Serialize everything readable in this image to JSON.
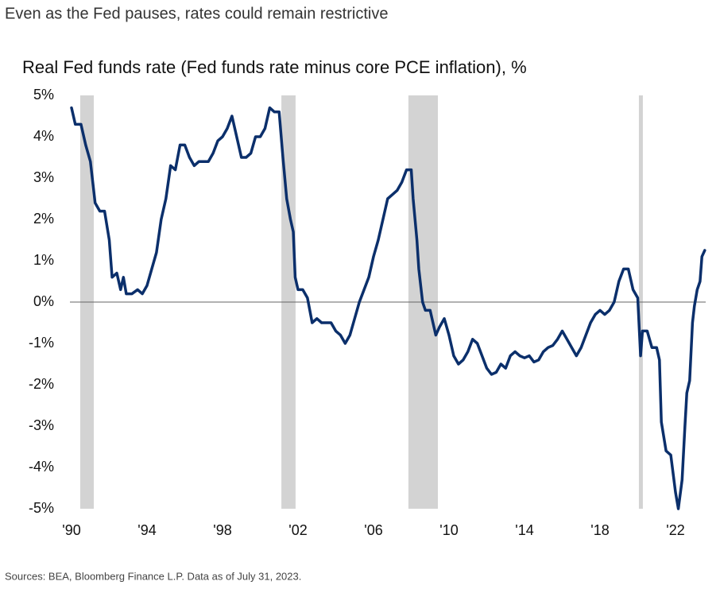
{
  "chart_data": {
    "type": "line",
    "title": "Even as the Fed pauses, rates could remain restrictive",
    "subtitle": "Real Fed funds rate (Fed funds rate minus core PCE inflation), %",
    "source": "Sources: BEA, Bloomberg Finance L.P. Data as of July 31, 2023.",
    "color": "#0b2f6b",
    "recession_color": "#d3d3d3",
    "recessions": [
      [
        1990.46,
        1991.18
      ],
      [
        2001.12,
        2001.87
      ],
      [
        2007.85,
        2009.41
      ],
      [
        2020.06,
        2020.27
      ]
    ],
    "xlim": [
      1990,
      2023.6
    ],
    "ylim": [
      -5,
      5
    ],
    "xticks": [
      {
        "value": 1990,
        "label": "'90"
      },
      {
        "value": 1994,
        "label": "'94"
      },
      {
        "value": 1998,
        "label": "'98"
      },
      {
        "value": 2002,
        "label": "'02"
      },
      {
        "value": 2006,
        "label": "'06"
      },
      {
        "value": 2010,
        "label": "'10"
      },
      {
        "value": 2014,
        "label": "'14"
      },
      {
        "value": 2018,
        "label": "'18"
      },
      {
        "value": 2022,
        "label": "'22"
      }
    ],
    "yticks": [
      {
        "value": 5,
        "label": "5%"
      },
      {
        "value": 4,
        "label": "4%"
      },
      {
        "value": 3,
        "label": "3%"
      },
      {
        "value": 2,
        "label": "2%"
      },
      {
        "value": 1,
        "label": "1%"
      },
      {
        "value": 0,
        "label": "0%"
      },
      {
        "value": -1,
        "label": "-1%"
      },
      {
        "value": -2,
        "label": "-2%"
      },
      {
        "value": -3,
        "label": "-3%"
      },
      {
        "value": -4,
        "label": "-4%"
      },
      {
        "value": -5,
        "label": "-5%"
      }
    ],
    "grid": false,
    "x": [
      1990.0,
      1990.2,
      1990.5,
      1990.75,
      1991.0,
      1991.25,
      1991.5,
      1991.75,
      1992.0,
      1992.15,
      1992.4,
      1992.6,
      1992.75,
      1992.9,
      1993.2,
      1993.5,
      1993.75,
      1994.0,
      1994.25,
      1994.5,
      1994.75,
      1995.0,
      1995.25,
      1995.5,
      1995.75,
      1996.0,
      1996.25,
      1996.5,
      1996.75,
      1997.0,
      1997.25,
      1997.5,
      1997.75,
      1998.0,
      1998.25,
      1998.5,
      1998.75,
      1999.0,
      1999.25,
      1999.5,
      1999.75,
      2000.0,
      2000.25,
      2000.5,
      2000.75,
      2001.0,
      2001.2,
      2001.4,
      2001.6,
      2001.75,
      2001.85,
      2002.0,
      2002.25,
      2002.5,
      2002.75,
      2003.0,
      2003.25,
      2003.5,
      2003.75,
      2004.0,
      2004.25,
      2004.5,
      2004.75,
      2005.0,
      2005.25,
      2005.5,
      2005.75,
      2006.0,
      2006.25,
      2006.5,
      2006.75,
      2007.0,
      2007.25,
      2007.5,
      2007.75,
      2008.0,
      2008.1,
      2008.3,
      2008.4,
      2008.6,
      2008.75,
      2009.0,
      2009.15,
      2009.3,
      2009.5,
      2009.75,
      2010.0,
      2010.25,
      2010.5,
      2010.75,
      2011.0,
      2011.25,
      2011.5,
      2011.75,
      2012.0,
      2012.25,
      2012.5,
      2012.75,
      2013.0,
      2013.25,
      2013.5,
      2013.75,
      2014.0,
      2014.25,
      2014.5,
      2014.75,
      2015.0,
      2015.25,
      2015.5,
      2015.75,
      2016.0,
      2016.25,
      2016.5,
      2016.75,
      2017.0,
      2017.25,
      2017.5,
      2017.75,
      2018.0,
      2018.25,
      2018.5,
      2018.75,
      2019.0,
      2019.25,
      2019.5,
      2019.75,
      2020.0,
      2020.15,
      2020.25,
      2020.5,
      2020.75,
      2021.0,
      2021.15,
      2021.25,
      2021.5,
      2021.75,
      2022.0,
      2022.15,
      2022.35,
      2022.5,
      2022.6,
      2022.75,
      2022.9,
      2023.0,
      2023.15,
      2023.3,
      2023.4,
      2023.55
    ],
    "values": [
      4.7,
      4.3,
      4.3,
      3.8,
      3.4,
      2.4,
      2.2,
      2.2,
      1.5,
      0.6,
      0.7,
      0.3,
      0.6,
      0.2,
      0.2,
      0.3,
      0.2,
      0.4,
      0.8,
      1.2,
      2.0,
      2.5,
      3.3,
      3.2,
      3.8,
      3.8,
      3.5,
      3.3,
      3.4,
      3.4,
      3.4,
      3.6,
      3.9,
      4.0,
      4.2,
      4.5,
      4.0,
      3.5,
      3.5,
      3.6,
      4.0,
      4.0,
      4.2,
      4.7,
      4.6,
      4.6,
      3.5,
      2.5,
      2.0,
      1.7,
      0.6,
      0.3,
      0.3,
      0.1,
      -0.5,
      -0.4,
      -0.5,
      -0.5,
      -0.5,
      -0.7,
      -0.8,
      -1.0,
      -0.8,
      -0.4,
      0.0,
      0.3,
      0.6,
      1.1,
      1.5,
      2.0,
      2.5,
      2.6,
      2.7,
      2.9,
      3.2,
      3.2,
      2.5,
      1.5,
      0.8,
      0.0,
      -0.2,
      -0.2,
      -0.5,
      -0.8,
      -0.6,
      -0.4,
      -0.8,
      -1.3,
      -1.5,
      -1.4,
      -1.2,
      -0.9,
      -1.0,
      -1.3,
      -1.6,
      -1.75,
      -1.7,
      -1.5,
      -1.6,
      -1.3,
      -1.2,
      -1.3,
      -1.35,
      -1.3,
      -1.45,
      -1.4,
      -1.2,
      -1.1,
      -1.05,
      -0.9,
      -0.7,
      -0.9,
      -1.1,
      -1.3,
      -1.1,
      -0.8,
      -0.5,
      -0.3,
      -0.2,
      -0.3,
      -0.2,
      0.0,
      0.5,
      0.8,
      0.8,
      0.3,
      0.1,
      -1.3,
      -0.7,
      -0.7,
      -1.1,
      -1.1,
      -1.4,
      -2.9,
      -3.6,
      -3.7,
      -4.6,
      -5.0,
      -4.3,
      -3.0,
      -2.2,
      -1.9,
      -0.5,
      -0.1,
      0.3,
      0.5,
      1.1,
      1.25
    ]
  }
}
